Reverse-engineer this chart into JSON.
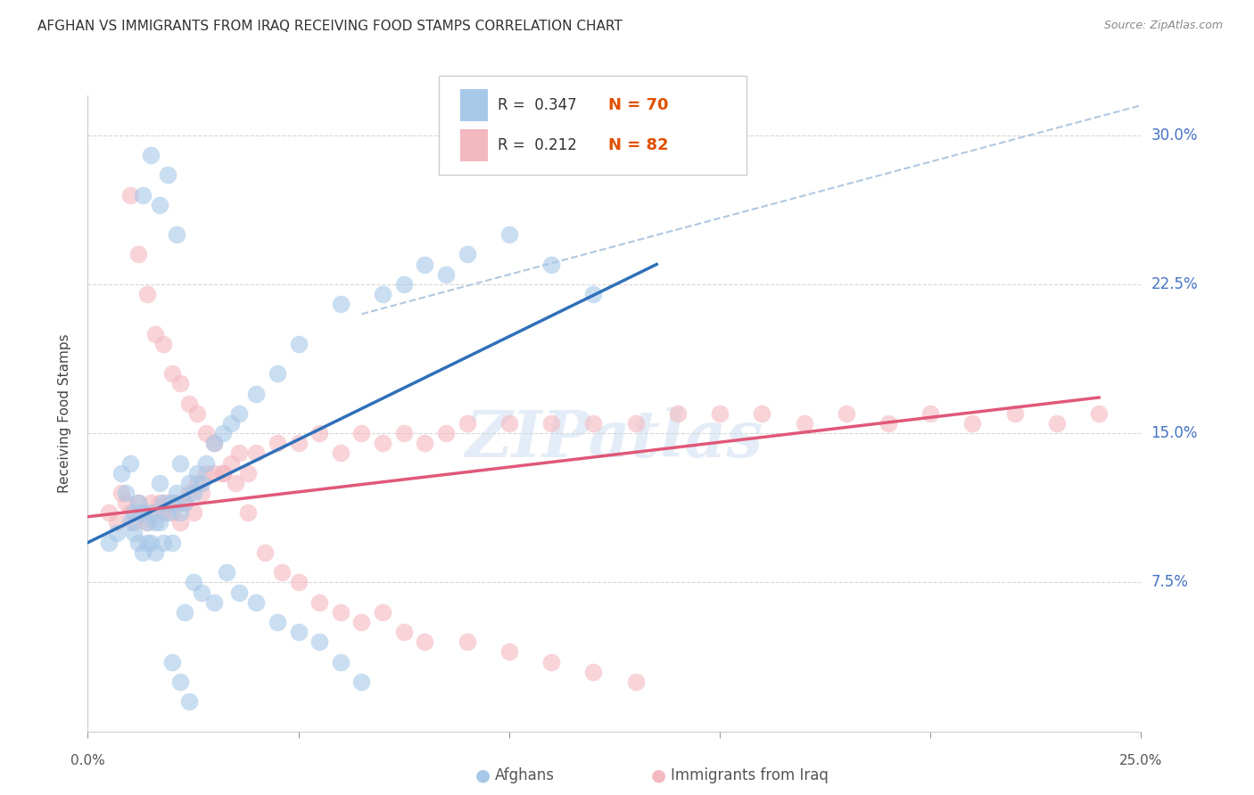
{
  "title": "AFGHAN VS IMMIGRANTS FROM IRAQ RECEIVING FOOD STAMPS CORRELATION CHART",
  "source": "Source: ZipAtlas.com",
  "ylabel": "Receiving Food Stamps",
  "ytick_labels": [
    "30.0%",
    "22.5%",
    "15.0%",
    "7.5%"
  ],
  "ytick_values": [
    0.3,
    0.225,
    0.15,
    0.075
  ],
  "xlim": [
    0.0,
    0.25
  ],
  "ylim": [
    0.0,
    0.32
  ],
  "legend_blue_r": "R =  0.347",
  "legend_blue_n": "N = 70",
  "legend_pink_r": "R =  0.212",
  "legend_pink_n": "N = 82",
  "legend_blue_label": "Afghans",
  "legend_pink_label": "Immigrants from Iraq",
  "blue_color": "#a8c8e8",
  "pink_color": "#f4b8c0",
  "blue_line_color": "#3070b8",
  "pink_line_color": "#e05878",
  "dashed_line_color": "#b0c8e0",
  "watermark": "ZIPatlas",
  "blue_scatter_x": [
    0.005,
    0.007,
    0.008,
    0.009,
    0.01,
    0.01,
    0.011,
    0.011,
    0.012,
    0.012,
    0.013,
    0.013,
    0.014,
    0.014,
    0.015,
    0.015,
    0.016,
    0.016,
    0.017,
    0.017,
    0.018,
    0.018,
    0.019,
    0.02,
    0.02,
    0.021,
    0.022,
    0.022,
    0.023,
    0.024,
    0.025,
    0.026,
    0.027,
    0.028,
    0.03,
    0.032,
    0.034,
    0.036,
    0.04,
    0.045,
    0.05,
    0.06,
    0.07,
    0.075,
    0.08,
    0.085,
    0.09,
    0.1,
    0.11,
    0.12,
    0.013,
    0.015,
    0.017,
    0.019,
    0.021,
    0.023,
    0.025,
    0.027,
    0.03,
    0.033,
    0.036,
    0.04,
    0.045,
    0.05,
    0.055,
    0.06,
    0.065,
    0.02,
    0.022,
    0.024
  ],
  "blue_scatter_y": [
    0.095,
    0.1,
    0.13,
    0.12,
    0.105,
    0.135,
    0.11,
    0.1,
    0.115,
    0.095,
    0.11,
    0.09,
    0.105,
    0.095,
    0.11,
    0.095,
    0.105,
    0.09,
    0.105,
    0.125,
    0.115,
    0.095,
    0.11,
    0.115,
    0.095,
    0.12,
    0.11,
    0.135,
    0.115,
    0.125,
    0.12,
    0.13,
    0.125,
    0.135,
    0.145,
    0.15,
    0.155,
    0.16,
    0.17,
    0.18,
    0.195,
    0.215,
    0.22,
    0.225,
    0.235,
    0.23,
    0.24,
    0.25,
    0.235,
    0.22,
    0.27,
    0.29,
    0.265,
    0.28,
    0.25,
    0.06,
    0.075,
    0.07,
    0.065,
    0.08,
    0.07,
    0.065,
    0.055,
    0.05,
    0.045,
    0.035,
    0.025,
    0.035,
    0.025,
    0.015
  ],
  "pink_scatter_x": [
    0.005,
    0.007,
    0.008,
    0.009,
    0.01,
    0.011,
    0.012,
    0.013,
    0.014,
    0.015,
    0.016,
    0.017,
    0.018,
    0.019,
    0.02,
    0.021,
    0.022,
    0.023,
    0.024,
    0.025,
    0.026,
    0.027,
    0.028,
    0.03,
    0.032,
    0.034,
    0.036,
    0.038,
    0.04,
    0.045,
    0.05,
    0.055,
    0.06,
    0.065,
    0.07,
    0.075,
    0.08,
    0.085,
    0.09,
    0.1,
    0.11,
    0.12,
    0.13,
    0.14,
    0.15,
    0.16,
    0.17,
    0.18,
    0.19,
    0.2,
    0.21,
    0.22,
    0.23,
    0.24,
    0.01,
    0.012,
    0.014,
    0.016,
    0.018,
    0.02,
    0.022,
    0.024,
    0.026,
    0.028,
    0.03,
    0.032,
    0.035,
    0.038,
    0.042,
    0.046,
    0.05,
    0.055,
    0.06,
    0.065,
    0.07,
    0.075,
    0.08,
    0.09,
    0.1,
    0.11,
    0.12,
    0.13
  ],
  "pink_scatter_y": [
    0.11,
    0.105,
    0.12,
    0.115,
    0.11,
    0.105,
    0.115,
    0.11,
    0.105,
    0.115,
    0.11,
    0.115,
    0.11,
    0.115,
    0.11,
    0.115,
    0.105,
    0.115,
    0.12,
    0.11,
    0.125,
    0.12,
    0.13,
    0.13,
    0.13,
    0.135,
    0.14,
    0.13,
    0.14,
    0.145,
    0.145,
    0.15,
    0.14,
    0.15,
    0.145,
    0.15,
    0.145,
    0.15,
    0.155,
    0.155,
    0.155,
    0.155,
    0.155,
    0.16,
    0.16,
    0.16,
    0.155,
    0.16,
    0.155,
    0.16,
    0.155,
    0.16,
    0.155,
    0.16,
    0.27,
    0.24,
    0.22,
    0.2,
    0.195,
    0.18,
    0.175,
    0.165,
    0.16,
    0.15,
    0.145,
    0.13,
    0.125,
    0.11,
    0.09,
    0.08,
    0.075,
    0.065,
    0.06,
    0.055,
    0.06,
    0.05,
    0.045,
    0.045,
    0.04,
    0.035,
    0.03,
    0.025
  ],
  "blue_line_x": [
    0.0,
    0.135
  ],
  "blue_line_y": [
    0.095,
    0.235
  ],
  "pink_line_x": [
    0.0,
    0.24
  ],
  "pink_line_y": [
    0.108,
    0.168
  ],
  "dashed_line_x": [
    0.065,
    0.25
  ],
  "dashed_line_y": [
    0.21,
    0.315
  ],
  "background_color": "#ffffff",
  "grid_color": "#cccccc",
  "title_fontsize": 11,
  "axis_label_fontsize": 10,
  "tick_label_fontsize": 11,
  "legend_fontsize": 12,
  "watermark_fontsize": 52,
  "watermark_color": "#c5d8ee",
  "watermark_alpha": 0.45,
  "right_tick_color": "#4472c4"
}
